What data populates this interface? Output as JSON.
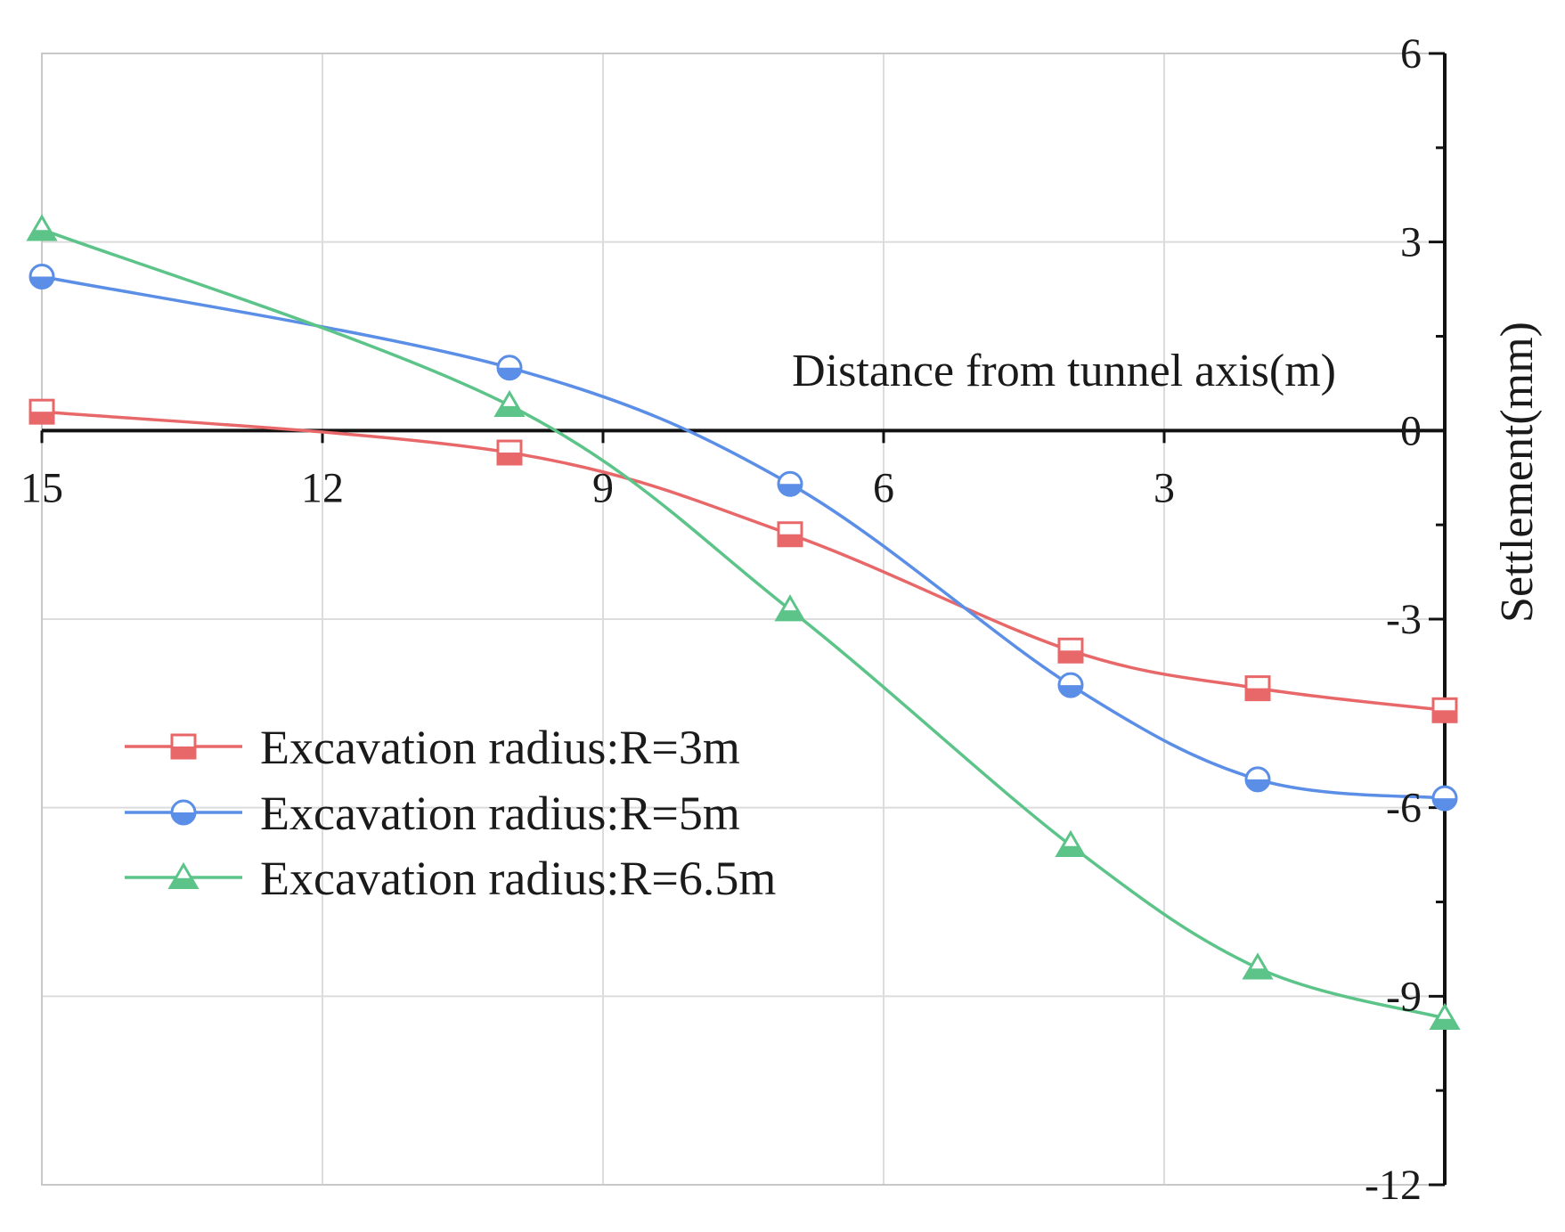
{
  "chart_data": {
    "type": "line",
    "title": "",
    "xlabel": "Distance from tunnel axis(m)",
    "ylabel": "Settlement(mm)",
    "xlim": [
      15,
      0
    ],
    "ylim": [
      -12,
      6
    ],
    "x_ticks": [
      15,
      12,
      9,
      6,
      3
    ],
    "y_ticks": [
      6,
      3,
      0,
      -3,
      -6,
      -9,
      -12
    ],
    "x_tick_labels": [
      "15",
      "12",
      "9",
      "6",
      "3"
    ],
    "y_tick_labels": [
      "6",
      "3",
      "0",
      "-3",
      "-6",
      "-9",
      "-12"
    ],
    "grid": true,
    "legend_position": "left-middle",
    "x": [
      15,
      10,
      7,
      4,
      2,
      0
    ],
    "series": [
      {
        "name": "Excavation radius:R=3m",
        "color": "#e8686a",
        "marker": "square",
        "values": [
          0.3,
          -0.35,
          -1.65,
          -3.5,
          -4.1,
          -4.45
        ]
      },
      {
        "name": "Excavation radius:R=5m",
        "color": "#5b8ee6",
        "marker": "circle",
        "values": [
          2.45,
          1.0,
          -0.85,
          -4.05,
          -5.55,
          -5.85
        ]
      },
      {
        "name": "Excavation radius:R=6.5m",
        "color": "#5cc489",
        "marker": "triangle",
        "values": [
          3.2,
          0.4,
          -2.85,
          -6.6,
          -8.55,
          -9.35
        ]
      }
    ]
  }
}
